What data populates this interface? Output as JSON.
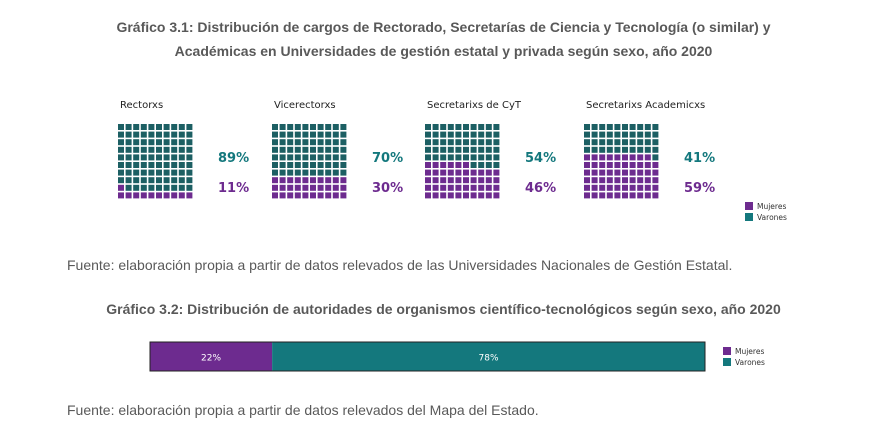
{
  "colors": {
    "mujeres": "#6d2b8f",
    "varones": "#14787d",
    "waffle_varones": "#1c5f63"
  },
  "chart1": {
    "title_line1": "Gráfico 3.1: Distribución de cargos de Rectorado, Secretarías de Ciencia y Tecnología (o similar) y",
    "title_line2": "Académicas en Universidades de gestión estatal y privada según sexo, año 2020",
    "source": "Fuente: elaboración propia a partir de datos relevados de las Universidades Nacionales de Gestión Estatal."
  },
  "chart2": {
    "title": "Gráfico 3.2: Distribución de autoridades de organismos científico-tecnológicos según sexo, año 2020",
    "source": "Fuente: elaboración propia a partir de datos relevados del Mapa del Estado."
  },
  "chart_data": [
    {
      "type": "waffle",
      "legend": [
        "Mujeres",
        "Varones"
      ],
      "legend_placement": "bottom-right",
      "panels": [
        {
          "name": "Rectorxs",
          "varones": 89,
          "mujeres": 11,
          "varones_label": "89%",
          "mujeres_label": "11%"
        },
        {
          "name": "Vicerectorxs",
          "varones": 70,
          "mujeres": 30,
          "varones_label": "70%",
          "mujeres_label": "30%"
        },
        {
          "name": "Secretarixs de CyT",
          "varones": 54,
          "mujeres": 46,
          "varones_label": "54%",
          "mujeres_label": "46%"
        },
        {
          "name": "Secretarixs Academicxs",
          "varones": 41,
          "mujeres": 59,
          "varones_label": "41%",
          "mujeres_label": "59%"
        }
      ]
    },
    {
      "type": "bar",
      "orientation": "horizontal",
      "stacked": true,
      "series": [
        {
          "name": "Mujeres",
          "values": [
            22
          ],
          "label": "22%"
        },
        {
          "name": "Varones",
          "values": [
            78
          ],
          "label": "78%"
        }
      ],
      "xlim": [
        0,
        100
      ],
      "legend": [
        "Mujeres",
        "Varones"
      ],
      "legend_placement": "right"
    }
  ]
}
